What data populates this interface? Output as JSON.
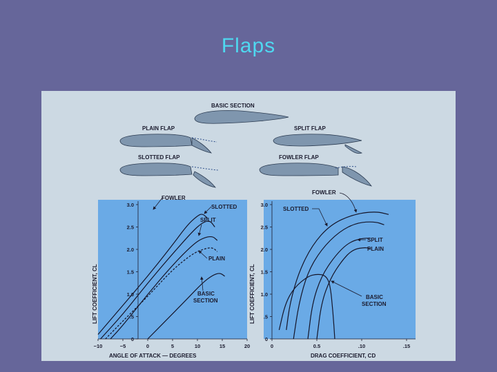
{
  "slide": {
    "title": "Flaps"
  },
  "airfoils": {
    "basic": "BASIC SECTION",
    "plain": "PLAIN FLAP",
    "split": "SPLIT FLAP",
    "slotted": "SLOTTED FLAP",
    "fowler": "FOWLER FLAP"
  },
  "colors": {
    "slide_bg": "#66669a",
    "title": "#4fd8f0",
    "figure_bg": "#ccd9e3",
    "plot_bg": "#6aaae6",
    "airfoil": "#7f96ae"
  },
  "chart_data": [
    {
      "type": "line",
      "xlabel": "ANGLE OF ATTACK — DEGREES",
      "ylabel": "LIFT COEFFICIENT, CL",
      "x_ticks": [
        "−10",
        "−5",
        "0",
        "5",
        "10",
        "15",
        "20"
      ],
      "y_ticks": [
        "0",
        ".5",
        "1.0",
        "1.5",
        "2.0",
        "2.5",
        "3.0"
      ],
      "xlim": [
        -10,
        20
      ],
      "ylim": [
        0,
        3.0
      ],
      "series": [
        {
          "name": "FOWLER",
          "points": [
            [
              -10,
              0.1
            ],
            [
              -5,
              0.75
            ],
            [
              0,
              1.4
            ],
            [
              5,
              2.1
            ],
            [
              8,
              2.55
            ],
            [
              10,
              2.75
            ],
            [
              11,
              2.8
            ],
            [
              12,
              2.7
            ]
          ]
        },
        {
          "name": "SLOTTED",
          "points": [
            [
              -9.5,
              0
            ],
            [
              -5,
              0.55
            ],
            [
              0,
              1.25
            ],
            [
              5,
              1.9
            ],
            [
              9,
              2.4
            ],
            [
              11,
              2.6
            ],
            [
              12.5,
              2.65
            ],
            [
              13.5,
              2.5
            ]
          ]
        },
        {
          "name": "SPLIT",
          "points": [
            [
              -7.5,
              0
            ],
            [
              -5,
              0.3
            ],
            [
              0,
              1.0
            ],
            [
              5,
              1.65
            ],
            [
              9,
              2.1
            ],
            [
              11,
              2.25
            ],
            [
              13,
              2.3
            ],
            [
              14,
              2.2
            ]
          ]
        },
        {
          "name": "PLAIN",
          "points": [
            [
              -8.5,
              0
            ],
            [
              -5,
              0.4
            ],
            [
              0,
              0.95
            ],
            [
              5,
              1.55
            ],
            [
              9,
              1.9
            ],
            [
              11,
              2.0
            ],
            [
              13,
              2.05
            ],
            [
              14,
              1.95
            ]
          ]
        },
        {
          "name": "BASIC SECTION",
          "points": [
            [
              0,
              0
            ],
            [
              4,
              0.45
            ],
            [
              8,
              0.9
            ],
            [
              11,
              1.25
            ],
            [
              13,
              1.42
            ],
            [
              14.5,
              1.48
            ],
            [
              15.5,
              1.4
            ]
          ]
        }
      ]
    },
    {
      "type": "line",
      "xlabel": "DRAG COEFFICIENT, CD",
      "ylabel": "LIFT COEFFICIENT, CL",
      "x_ticks": [
        "0",
        "0.5",
        ".10",
        ".15"
      ],
      "y_ticks": [
        "0",
        ".5",
        "1.0",
        "1.5",
        "2.0",
        "2.5",
        "3.0"
      ],
      "xlim": [
        0,
        0.16
      ],
      "ylim": [
        0,
        3.0
      ],
      "series": [
        {
          "name": "FOWLER",
          "points": [
            [
              0.016,
              0.2
            ],
            [
              0.02,
              0.8
            ],
            [
              0.03,
              1.5
            ],
            [
              0.045,
              2.1
            ],
            [
              0.065,
              2.55
            ],
            [
              0.09,
              2.78
            ],
            [
              0.115,
              2.85
            ],
            [
              0.13,
              2.78
            ]
          ]
        },
        {
          "name": "SLOTTED",
          "points": [
            [
              0.024,
              0
            ],
            [
              0.03,
              0.8
            ],
            [
              0.04,
              1.5
            ],
            [
              0.055,
              2.0
            ],
            [
              0.075,
              2.4
            ],
            [
              0.095,
              2.6
            ],
            [
              0.115,
              2.62
            ],
            [
              0.125,
              2.55
            ]
          ]
        },
        {
          "name": "SPLIT",
          "points": [
            [
              0.04,
              0
            ],
            [
              0.045,
              0.8
            ],
            [
              0.055,
              1.4
            ],
            [
              0.07,
              1.85
            ],
            [
              0.085,
              2.15
            ],
            [
              0.1,
              2.25
            ],
            [
              0.11,
              2.25
            ]
          ]
        },
        {
          "name": "PLAIN",
          "points": [
            [
              0.05,
              0
            ],
            [
              0.055,
              0.8
            ],
            [
              0.065,
              1.35
            ],
            [
              0.078,
              1.75
            ],
            [
              0.09,
              2.0
            ],
            [
              0.105,
              2.05
            ],
            [
              0.11,
              2.0
            ]
          ]
        },
        {
          "name": "BASIC SECTION",
          "points": [
            [
              0.008,
              0.2
            ],
            [
              0.015,
              0.8
            ],
            [
              0.025,
              1.15
            ],
            [
              0.04,
              1.4
            ],
            [
              0.05,
              1.45
            ],
            [
              0.06,
              1.42
            ],
            [
              0.065,
              1.2
            ],
            [
              0.068,
              0.6
            ],
            [
              0.07,
              0
            ]
          ]
        }
      ]
    }
  ],
  "annotations": {
    "left": {
      "fowler": "FOWLER",
      "slotted": "SLOTTED",
      "split": "SPLIT",
      "plain": "PLAIN",
      "basic1": "BASIC",
      "basic2": "SECTION"
    },
    "right": {
      "fowler": "FOWLER",
      "slotted": "SLOTTED",
      "split": "SPLIT",
      "plain": "PLAIN",
      "basic1": "BASIC",
      "basic2": "SECTION"
    }
  }
}
